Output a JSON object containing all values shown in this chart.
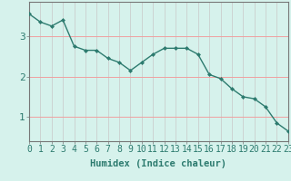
{
  "x": [
    0,
    1,
    2,
    3,
    4,
    5,
    6,
    7,
    8,
    9,
    10,
    11,
    12,
    13,
    14,
    15,
    16,
    17,
    18,
    19,
    20,
    21,
    22,
    23
  ],
  "y": [
    3.55,
    3.35,
    3.25,
    3.4,
    2.75,
    2.65,
    2.65,
    2.45,
    2.35,
    2.15,
    2.35,
    2.55,
    2.7,
    2.7,
    2.7,
    2.55,
    2.05,
    1.95,
    1.7,
    1.5,
    1.45,
    1.25,
    0.85,
    0.65
  ],
  "line_color": "#2d7b6f",
  "background_color": "#d6f2ec",
  "vgrid_color": "#c8c8c8",
  "hgrid_color": "#f0a0a0",
  "axis_color": "#777777",
  "xlabel": "Humidex (Indice chaleur)",
  "ytick_labels": [
    "1",
    "2",
    "3"
  ],
  "yticks": [
    1,
    2,
    3
  ],
  "xticks": [
    0,
    1,
    2,
    3,
    4,
    5,
    6,
    7,
    8,
    9,
    10,
    11,
    12,
    13,
    14,
    15,
    16,
    17,
    18,
    19,
    20,
    21,
    22,
    23
  ],
  "xlim": [
    0,
    23
  ],
  "ylim": [
    0.4,
    3.85
  ],
  "marker": "D",
  "marker_size": 2.0,
  "linewidth": 1.0,
  "xlabel_fontsize": 7.5,
  "tick_fontsize": 7.0
}
